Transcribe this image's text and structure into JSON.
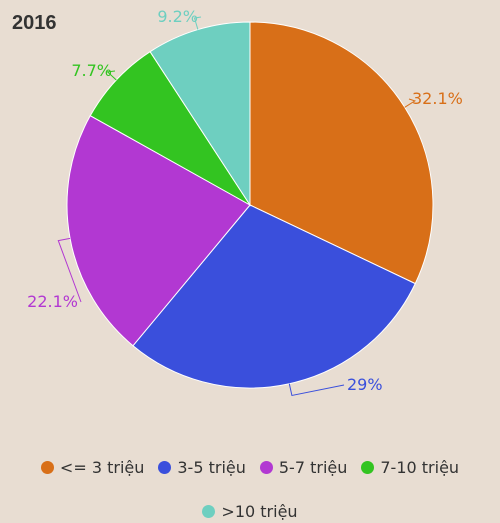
{
  "chart_data": {
    "type": "pie",
    "title": "2016",
    "categories": [
      "<= 3 triệu",
      "3-5 triệu",
      "5-7 triệu",
      "7-10 triệu",
      ">10 triệu"
    ],
    "values": [
      32.1,
      29,
      22.1,
      7.7,
      9.2
    ],
    "data_labels": [
      "32.1%",
      "29%",
      "22.1%",
      "7.7%",
      "9.2%"
    ],
    "colors": [
      "#d86f18",
      "#3a4fdc",
      "#b238d2",
      "#33c421",
      "#6ecfc0"
    ],
    "legend_position": "bottom"
  }
}
